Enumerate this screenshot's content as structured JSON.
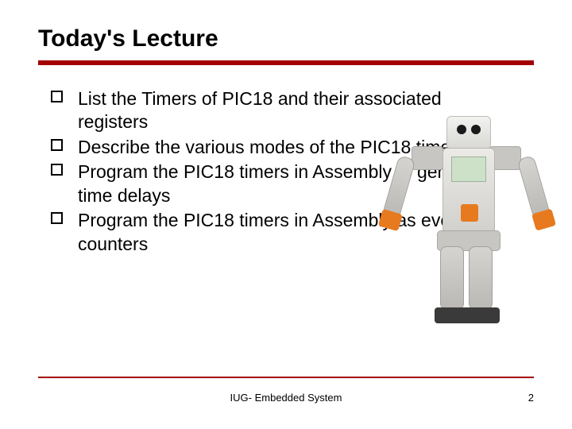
{
  "title": "Today's Lecture",
  "accent_color": "#a30000",
  "text_color": "#000000",
  "background_color": "#ffffff",
  "title_fontsize": 30,
  "body_fontsize": 23,
  "footer_fontsize": 13,
  "bullet_marker": "hollow-square",
  "bullets": [
    "List the Timers of PIC18 and their associated registers",
    "Describe the various modes of the PIC18 timers",
    "Program the PIC18 timers in Assembly to generate time delays",
    "Program the PIC18 timers in Assembly as event counters"
  ],
  "footer_text": "IUG- Embedded System",
  "page_number": "2",
  "image": {
    "description": "humanoid-robot",
    "position": "right",
    "body_color": "#eceae6",
    "accent_color": "#e77a1f",
    "screen_color": "#cde0c8"
  }
}
